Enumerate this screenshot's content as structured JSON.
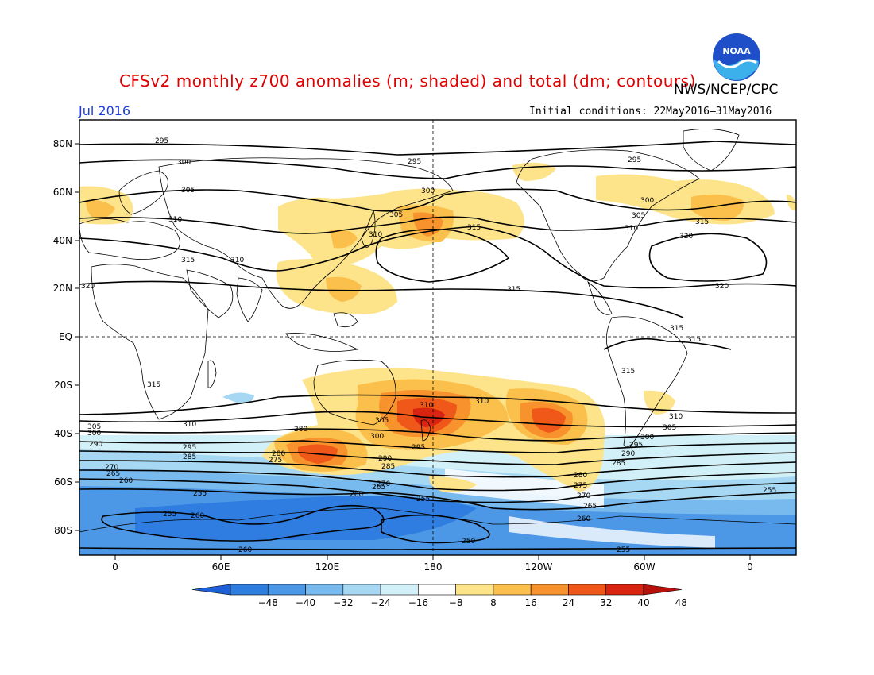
{
  "header": {
    "title": "CFSv2 monthly z700 anomalies (m; shaded) and total (dm; contours)",
    "agency": "NWS/NCEP/CPC",
    "month": "Jul 2016",
    "initial_conditions": "Initial conditions: 22May2016–31May2016",
    "logo_text": "NOAA"
  },
  "axes": {
    "lat_labels": [
      "80N",
      "60N",
      "40N",
      "20N",
      "EQ",
      "20S",
      "40S",
      "60S",
      "80S"
    ],
    "lon_labels": [
      "0",
      "60E",
      "120E",
      "180",
      "120W",
      "60W",
      "0"
    ]
  },
  "colorbar": {
    "labels": [
      "−48",
      "−40",
      "−32",
      "−24",
      "−16",
      "−8",
      "8",
      "16",
      "24",
      "32",
      "40",
      "48"
    ],
    "colors": [
      "#1e60d8",
      "#2f7de0",
      "#4c98e6",
      "#78b9ee",
      "#a6d8f3",
      "#d2f0f7",
      "#ffffff",
      "#fde48a",
      "#fbc04b",
      "#f7922c",
      "#ef5818",
      "#d82410",
      "#b8100a"
    ]
  },
  "contour_labels": {
    "values": [
      "295",
      "300",
      "305",
      "310",
      "315",
      "320",
      "315",
      "310",
      "305",
      "300",
      "295",
      "290",
      "285",
      "280",
      "275",
      "270",
      "265",
      "260",
      "255",
      "250"
    ]
  },
  "colors": {
    "title": "#e00000",
    "month": "#1a3ce0",
    "noaa_blue": "#1f4fc8"
  }
}
